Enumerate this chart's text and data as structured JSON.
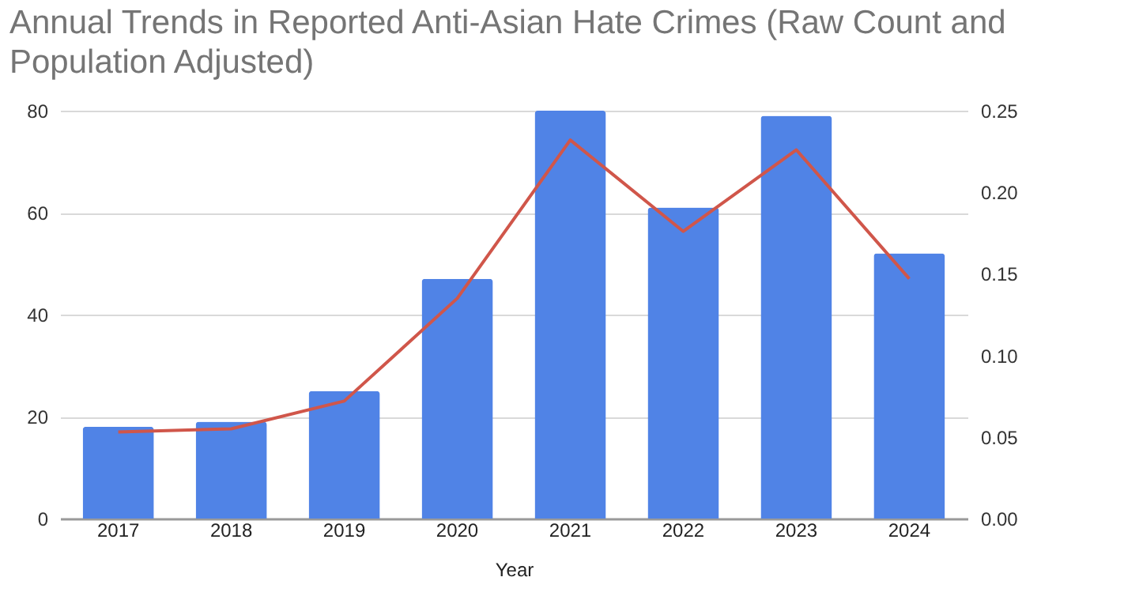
{
  "chart_data": {
    "type": "bar",
    "title": "Annual Trends in Reported Anti-Asian Hate Crimes (Raw Count and Population Adjusted)",
    "xlabel": "Year",
    "categories": [
      "2017",
      "2018",
      "2019",
      "2020",
      "2021",
      "2022",
      "2023",
      "2024"
    ],
    "series": [
      {
        "color": "#5083e6",
        "values": [
          18,
          19,
          25,
          47,
          80,
          61,
          79,
          52
        ]
      },
      {
        "type": "line",
        "axis": "y2",
        "color": "#d0564a",
        "values": [
          0.053,
          0.055,
          0.072,
          0.135,
          0.232,
          0.176,
          0.226,
          0.147
        ]
      }
    ],
    "ylim": [
      0,
      80
    ],
    "yticks": [
      0,
      20,
      40,
      60,
      80
    ],
    "y2lim": [
      0,
      0.25
    ],
    "y2ticks": [
      {
        "value": 0,
        "label": "0.00"
      },
      {
        "value": 0.05,
        "label": "0.05"
      },
      {
        "value": 0.1,
        "label": "0.10"
      },
      {
        "value": 0.15,
        "label": "0.15"
      },
      {
        "value": 0.2,
        "label": "0.20"
      },
      {
        "value": 0.25,
        "label": "0.25"
      }
    ],
    "grid": "y"
  }
}
